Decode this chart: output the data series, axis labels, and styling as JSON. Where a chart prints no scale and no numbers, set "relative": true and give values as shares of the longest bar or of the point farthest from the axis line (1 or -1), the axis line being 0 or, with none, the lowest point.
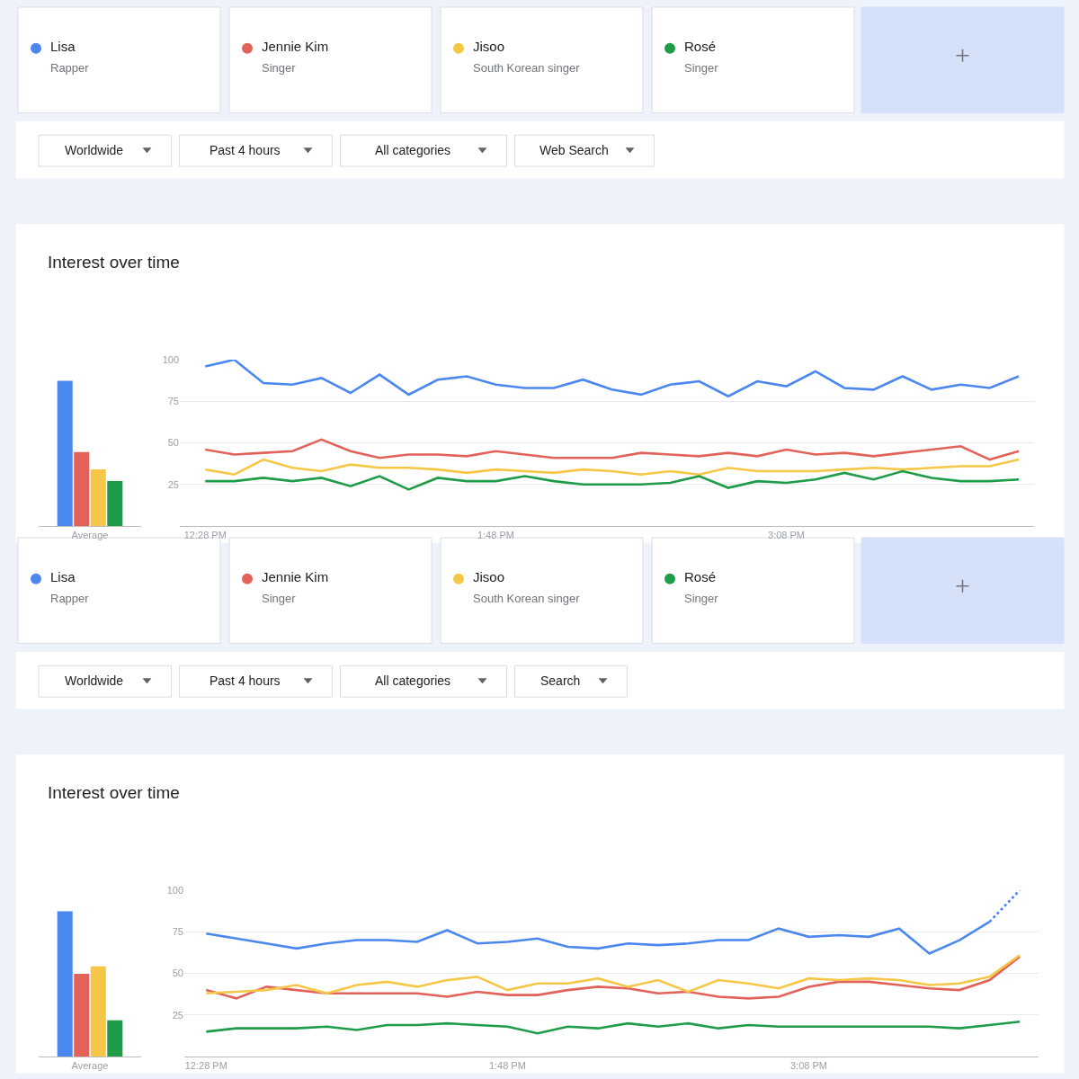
{
  "chart_data": [
    {
      "type": "bar",
      "relative": true,
      "categories": [
        "Average"
      ],
      "series": [
        {
          "color": "#4a87ee",
          "values": [
            1
          ]
        },
        {
          "color": "#e2625a",
          "values": [
            0.51
          ]
        },
        {
          "color": "#f6c747",
          "values": [
            0.39
          ]
        },
        {
          "color": "#1f9c48",
          "values": [
            0.31
          ]
        }
      ]
    },
    {
      "type": "line",
      "title": "Interest over time",
      "legend": "top",
      "grid": "y",
      "x": [
        12.4667,
        12.6,
        12.7333,
        12.8667,
        13,
        13.1333,
        13.2667,
        13.4,
        13.5333,
        13.6667,
        13.8,
        13.9333,
        14.0667,
        14.2,
        14.3333,
        14.4667,
        14.6,
        14.7333,
        14.8667,
        15,
        15.1333,
        15.2667,
        15.4,
        15.5333,
        15.6667,
        15.8,
        15.9333,
        16.0667,
        16.2
      ],
      "xlim": [
        12.35,
        16.27
      ],
      "xticks": [
        {
          "value": 12.4667,
          "label": "12:28 PM"
        },
        {
          "value": 13.8,
          "label": "1:48 PM"
        },
        {
          "value": 15.1333,
          "label": "3:08 PM"
        }
      ],
      "ylim": [
        0,
        100
      ],
      "yticks": [
        25,
        50,
        75,
        100
      ],
      "annotations": [
        "Rapper",
        "Singer",
        "South Korean singer",
        "Singer",
        "Worldwide",
        "Past 4 hours",
        "All categories",
        "Web Search"
      ],
      "series": [
        {
          "name": "Lisa",
          "color": "#4a87ee",
          "values": [
            96,
            100,
            86,
            85,
            89,
            80,
            91,
            79,
            88,
            90,
            85,
            83,
            83,
            88,
            82,
            79,
            85,
            87,
            78,
            87,
            84,
            93,
            83,
            82,
            90,
            82,
            85,
            83,
            90
          ]
        },
        {
          "name": "Jennie Kim",
          "color": "#e2625a",
          "values": [
            46,
            43,
            44,
            45,
            52,
            45,
            41,
            43,
            43,
            42,
            45,
            43,
            41,
            41,
            41,
            44,
            43,
            42,
            44,
            42,
            46,
            43,
            44,
            42,
            44,
            46,
            48,
            40,
            45
          ]
        },
        {
          "name": "Jisoo",
          "color": "#f6c747",
          "values": [
            34,
            31,
            40,
            35,
            33,
            37,
            35,
            35,
            34,
            32,
            34,
            33,
            32,
            34,
            33,
            31,
            33,
            31,
            35,
            33,
            33,
            33,
            34,
            35,
            34,
            35,
            36,
            36,
            40
          ]
        },
        {
          "name": "Rosé",
          "color": "#1f9c48",
          "values": [
            27,
            27,
            29,
            27,
            29,
            24,
            30,
            22,
            29,
            27,
            27,
            30,
            27,
            25,
            25,
            25,
            26,
            30,
            23,
            27,
            26,
            28,
            32,
            28,
            33,
            29,
            27,
            27,
            28
          ]
        }
      ]
    },
    {
      "type": "bar",
      "relative": true,
      "categories": [
        "Average"
      ],
      "series": [
        {
          "color": "#4a87ee",
          "values": [
            1
          ]
        },
        {
          "color": "#e2625a",
          "values": [
            0.57
          ]
        },
        {
          "color": "#f6c747",
          "values": [
            0.62
          ]
        },
        {
          "color": "#1f9c48",
          "values": [
            0.25
          ]
        }
      ]
    },
    {
      "type": "line",
      "title": "Interest over time",
      "legend": "top",
      "grid": "y",
      "x": [
        12.4667,
        12.6,
        12.7333,
        12.8667,
        13,
        13.1333,
        13.2667,
        13.4,
        13.5333,
        13.6667,
        13.8,
        13.9333,
        14.0667,
        14.2,
        14.3333,
        14.4667,
        14.6,
        14.7333,
        14.8667,
        15,
        15.1333,
        15.2667,
        15.4,
        15.5333,
        15.6667,
        15.8,
        15.9333,
        16.0667
      ],
      "xlim": [
        12.37,
        16.15
      ],
      "xticks": [
        {
          "value": 12.4667,
          "label": "12:28 PM"
        },
        {
          "value": 13.8,
          "label": "1:48 PM"
        },
        {
          "value": 15.1333,
          "label": "3:08 PM"
        }
      ],
      "ylim": [
        0,
        100
      ],
      "yticks": [
        25,
        50,
        75,
        100
      ],
      "annotations": [
        "Rapper",
        "Singer",
        "South Korean singer",
        "Singer",
        "Worldwide",
        "Past 4 hours",
        "All categories",
        "Search"
      ],
      "series": [
        {
          "name": "Lisa",
          "color": "#4a87ee",
          "values": [
            74,
            71,
            68,
            65,
            68,
            70,
            70,
            69,
            76,
            68,
            69,
            71,
            66,
            65,
            68,
            67,
            68,
            70,
            70,
            77,
            72,
            73,
            72,
            77,
            62,
            70,
            81,
            null
          ]
        },
        {
          "color": "#4a87ee",
          "line_style": "dotted",
          "x": [
            15.9333,
            16.0667
          ],
          "values": [
            81,
            100
          ]
        },
        {
          "name": "Jennie Kim",
          "color": "#e2625a",
          "values": [
            40,
            35,
            42,
            40,
            38,
            38,
            38,
            38,
            36,
            39,
            37,
            37,
            40,
            42,
            41,
            38,
            39,
            36,
            35,
            36,
            42,
            45,
            45,
            43,
            41,
            40,
            46,
            60
          ]
        },
        {
          "name": "Jisoo",
          "color": "#f6c747",
          "values": [
            38,
            39,
            40,
            43,
            38,
            43,
            45,
            42,
            46,
            48,
            40,
            44,
            44,
            47,
            42,
            46,
            39,
            46,
            44,
            41,
            47,
            46,
            47,
            46,
            43,
            44,
            48,
            61
          ]
        },
        {
          "name": "Rosé",
          "color": "#1f9c48",
          "values": [
            15,
            17,
            17,
            17,
            18,
            16,
            19,
            19,
            20,
            19,
            18,
            14,
            18,
            17,
            20,
            18,
            20,
            17,
            19,
            18,
            18,
            18,
            18,
            18,
            18,
            17,
            19,
            21
          ]
        }
      ]
    }
  ]
}
